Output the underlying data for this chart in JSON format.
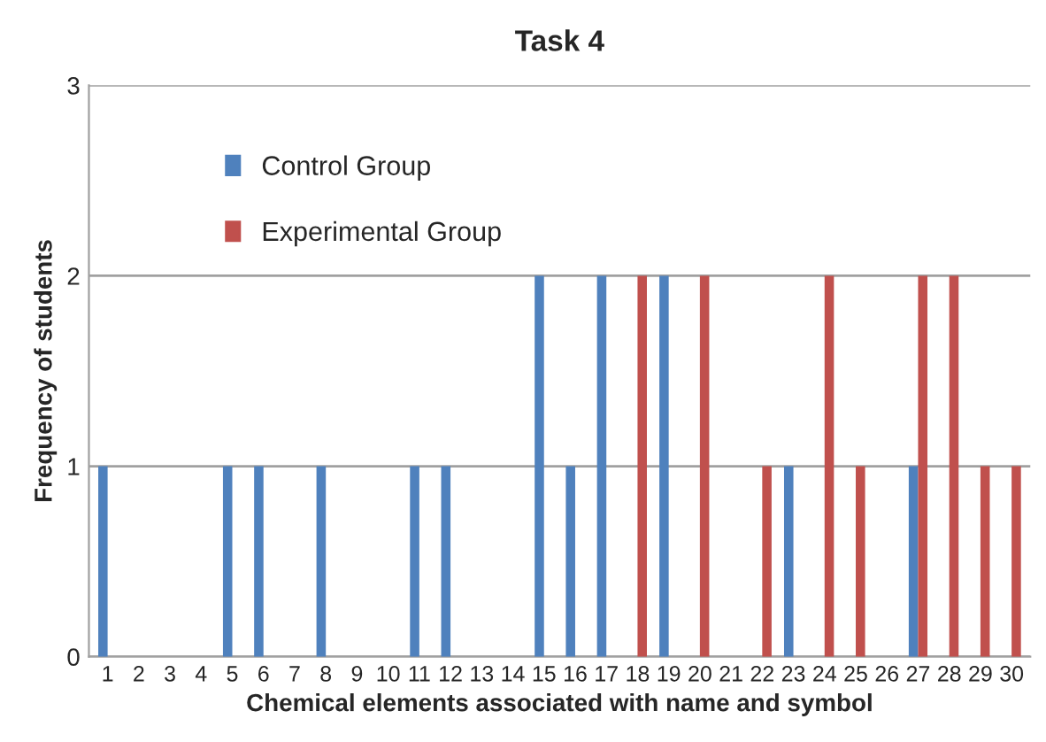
{
  "chart_data": {
    "type": "bar",
    "title": "Task 4",
    "xlabel": "Chemical elements associated with name and symbol",
    "ylabel": "Frequency of students",
    "categories": [
      "1",
      "2",
      "3",
      "4",
      "5",
      "6",
      "7",
      "8",
      "9",
      "10",
      "11",
      "12",
      "13",
      "14",
      "15",
      "16",
      "17",
      "18",
      "19",
      "20",
      "21",
      "22",
      "23",
      "24",
      "25",
      "26",
      "27",
      "28",
      "29",
      "30"
    ],
    "series": [
      {
        "name": "Control Group",
        "color": "#4f81bd",
        "values": [
          1,
          null,
          null,
          null,
          1,
          1,
          null,
          1,
          null,
          null,
          1,
          1,
          null,
          null,
          2,
          1,
          2,
          null,
          2,
          null,
          null,
          null,
          1,
          null,
          null,
          null,
          1,
          null,
          null,
          null
        ]
      },
      {
        "name": "Experimental Group",
        "color": "#c0504d",
        "values": [
          null,
          null,
          null,
          null,
          null,
          null,
          null,
          null,
          null,
          null,
          null,
          null,
          null,
          null,
          null,
          null,
          null,
          2,
          null,
          2,
          null,
          1,
          null,
          2,
          1,
          null,
          2,
          2,
          1,
          1
        ]
      }
    ],
    "ylim": [
      0,
      3
    ],
    "yticks": [
      0,
      1,
      2,
      3
    ],
    "grid": "y",
    "legend": "top left"
  }
}
